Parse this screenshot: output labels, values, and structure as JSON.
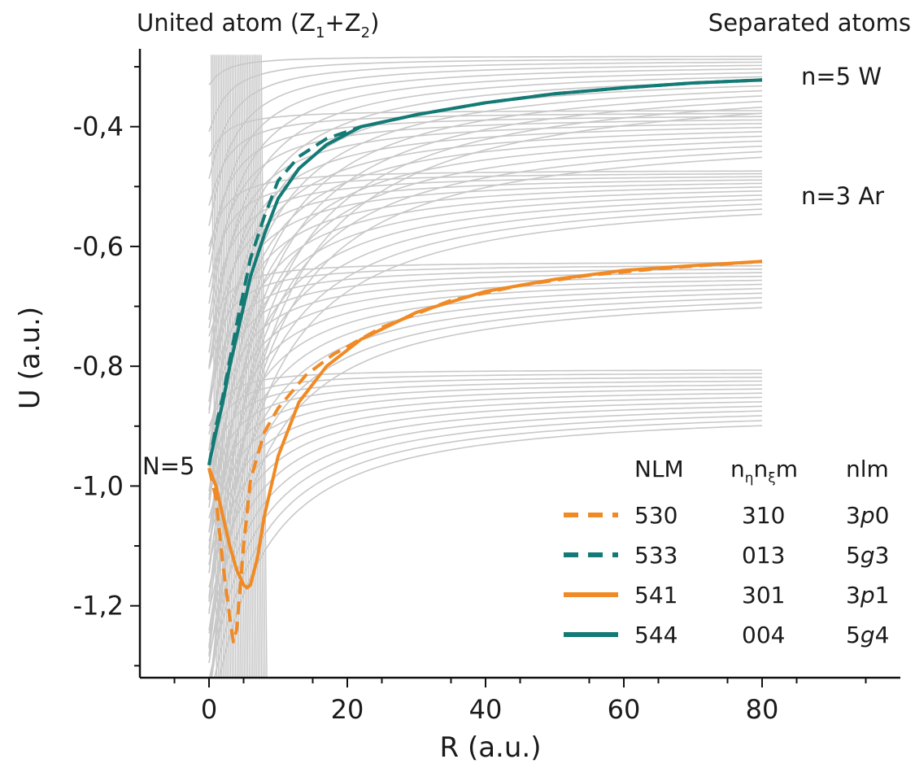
{
  "chart_data": {
    "type": "line",
    "xlabel": "R (a.u.)",
    "ylabel": "U (a.u.)",
    "xlim": [
      -10,
      100
    ],
    "ylim": [
      -1.32,
      -0.27
    ],
    "x_ticks": [
      0,
      20,
      40,
      60,
      80
    ],
    "x_tick_labels": [
      "0",
      "20",
      "40",
      "60",
      "80"
    ],
    "y_ticks": [
      -1.2,
      -1.0,
      -0.8,
      -0.6,
      -0.4
    ],
    "y_tick_labels": [
      "-1,2",
      "-1,0",
      "-0,8",
      "-0,6",
      "-0,4"
    ],
    "grid": false,
    "legend_position": "bottom-right",
    "annotations": {
      "united_atom": "United atom (Z",
      "sub1": "1",
      "plus": "+Z",
      "sub2": "2",
      "close": ")",
      "separated": "Separated atoms",
      "n5w": "n=5 W",
      "n3ar": "n=3 Ar",
      "N5": "N=5"
    },
    "legend": {
      "headers": [
        "NLM",
        "nlm"
      ],
      "header_nn": "n",
      "header_nn_sub1": "η",
      "header_nn_mid": "n",
      "header_nn_sub2": "ξ",
      "header_nn_end": "m",
      "rows": [
        {
          "style": "dashed",
          "color": "#f08a24",
          "nlm_big": "530",
          "nnm": "310",
          "nlm_pre": "3",
          "nlm_it": "p",
          "nlm_post": "0"
        },
        {
          "style": "dashed",
          "color": "#137a75",
          "nlm_big": "533",
          "nnm": "013",
          "nlm_pre": "5",
          "nlm_it": "g",
          "nlm_post": "3"
        },
        {
          "style": "solid",
          "color": "#f08a24",
          "nlm_big": "541",
          "nnm": "301",
          "nlm_pre": "3",
          "nlm_it": "p",
          "nlm_post": "1"
        },
        {
          "style": "solid",
          "color": "#137a75",
          "nlm_big": "544",
          "nnm": "004",
          "nlm_pre": "5",
          "nlm_it": "g",
          "nlm_post": "4"
        }
      ]
    },
    "background_color": "#c8c8c8",
    "series": [
      {
        "style": "dashed",
        "color": "#f08a24",
        "x": [
          0,
          1,
          2,
          3,
          3.5,
          4,
          5,
          6,
          8,
          10,
          14,
          18,
          25,
          35,
          45,
          55,
          65,
          80
        ],
        "y": [
          -0.97,
          -1.02,
          -1.13,
          -1.22,
          -1.26,
          -1.24,
          -1.1,
          -0.99,
          -0.91,
          -0.87,
          -0.815,
          -0.78,
          -0.735,
          -0.69,
          -0.665,
          -0.648,
          -0.637,
          -0.625
        ]
      },
      {
        "style": "dashed",
        "color": "#137a75",
        "x": [
          0,
          1,
          2,
          3,
          4,
          6,
          8,
          10,
          13,
          17,
          22,
          30,
          40,
          50,
          60,
          70,
          80
        ],
        "y": [
          -0.965,
          -0.9,
          -0.85,
          -0.79,
          -0.73,
          -0.62,
          -0.55,
          -0.49,
          -0.45,
          -0.42,
          -0.4,
          -0.38,
          -0.36,
          -0.345,
          -0.335,
          -0.327,
          -0.322
        ]
      },
      {
        "style": "solid",
        "color": "#f08a24",
        "x": [
          0,
          1,
          2,
          3,
          4,
          5,
          5.5,
          6,
          7,
          8,
          10,
          13,
          17,
          22,
          30,
          40,
          50,
          60,
          70,
          80
        ],
        "y": [
          -0.97,
          -1.0,
          -1.05,
          -1.1,
          -1.14,
          -1.165,
          -1.17,
          -1.165,
          -1.12,
          -1.05,
          -0.95,
          -0.86,
          -0.8,
          -0.755,
          -0.71,
          -0.675,
          -0.655,
          -0.64,
          -0.632,
          -0.625
        ]
      },
      {
        "style": "solid",
        "color": "#137a75",
        "x": [
          0,
          1,
          2,
          3,
          4,
          6,
          8,
          10,
          13,
          17,
          22,
          30,
          40,
          50,
          60,
          70,
          80
        ],
        "y": [
          -0.965,
          -0.91,
          -0.86,
          -0.8,
          -0.75,
          -0.65,
          -0.58,
          -0.52,
          -0.47,
          -0.43,
          -0.4,
          -0.38,
          -0.36,
          -0.345,
          -0.335,
          -0.327,
          -0.322
        ]
      }
    ]
  }
}
